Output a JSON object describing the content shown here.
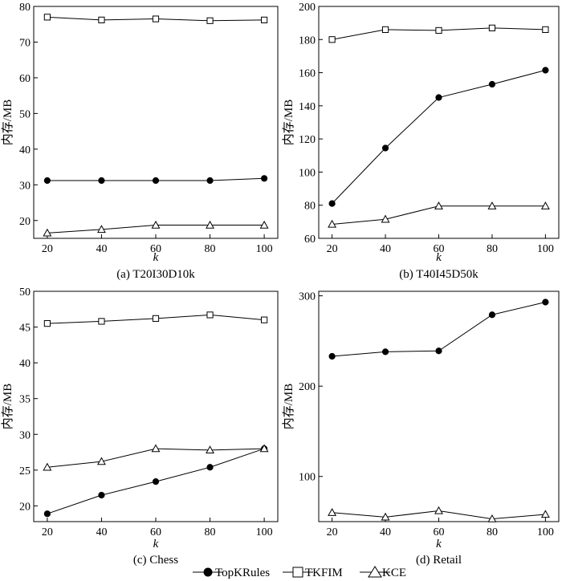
{
  "chart_data": [
    {
      "type": "line",
      "title": "(a) T20I30D10k",
      "xlabel": "k",
      "ylabel": "内存/MB",
      "x": [
        20,
        40,
        60,
        80,
        100
      ],
      "xlim": [
        15,
        105
      ],
      "ylim": [
        15,
        80
      ],
      "xticks": [
        "20",
        "40",
        "60",
        "80",
        "100"
      ],
      "yticks": [
        "20",
        "30",
        "40",
        "50",
        "60",
        "70",
        "80"
      ],
      "series": [
        {
          "name": "TopKRules",
          "marker": "circle",
          "values": [
            31.2,
            31.2,
            31.2,
            31.2,
            31.8
          ]
        },
        {
          "name": "TKFIM",
          "marker": "square",
          "values": [
            77,
            76.2,
            76.5,
            76,
            76.2
          ]
        },
        {
          "name": "KCE",
          "marker": "triangle",
          "values": [
            16.5,
            17.5,
            18.7,
            18.7,
            18.7
          ]
        }
      ]
    },
    {
      "type": "line",
      "title": "(b) T40I45D50k",
      "xlabel": "k",
      "ylabel": "内存/MB",
      "x": [
        20,
        40,
        60,
        80,
        100
      ],
      "xlim": [
        15,
        105
      ],
      "ylim": [
        60,
        200
      ],
      "xticks": [
        "20",
        "40",
        "60",
        "80",
        "100"
      ],
      "yticks": [
        "60",
        "80",
        "100",
        "120",
        "140",
        "160",
        "180",
        "200"
      ],
      "series": [
        {
          "name": "TopKRules",
          "marker": "circle",
          "values": [
            81,
            114.5,
            145,
            153,
            161.5
          ]
        },
        {
          "name": "TKFIM",
          "marker": "square",
          "values": [
            180,
            186,
            185.5,
            187,
            186
          ]
        },
        {
          "name": "KCE",
          "marker": "triangle",
          "values": [
            68.5,
            71.5,
            79.5,
            79.5,
            79.5
          ]
        }
      ]
    },
    {
      "type": "line",
      "title": "(c) Chess",
      "xlabel": "k",
      "ylabel": "内存/MB",
      "x": [
        20,
        40,
        60,
        80,
        100
      ],
      "xlim": [
        15,
        105
      ],
      "ylim": [
        17.8,
        50
      ],
      "xticks": [
        "20",
        "40",
        "60",
        "80",
        "100"
      ],
      "yticks": [
        "20",
        "25",
        "30",
        "35",
        "40",
        "45",
        "50"
      ],
      "series": [
        {
          "name": "TopKRules",
          "marker": "circle",
          "values": [
            18.9,
            21.5,
            23.4,
            25.4,
            28
          ]
        },
        {
          "name": "TKFIM",
          "marker": "square",
          "values": [
            45.5,
            45.8,
            46.2,
            46.7,
            46
          ]
        },
        {
          "name": "KCE",
          "marker": "triangle",
          "values": [
            25.4,
            26.2,
            28,
            27.8,
            28
          ]
        }
      ]
    },
    {
      "type": "line",
      "title": "(d) Retail",
      "xlabel": "k",
      "ylabel": "内存/MB",
      "x": [
        20,
        40,
        60,
        80,
        100
      ],
      "xlim": [
        15,
        105
      ],
      "ylim": [
        50,
        305
      ],
      "xticks": [
        "20",
        "40",
        "60",
        "80",
        "100"
      ],
      "yticks": [
        "100",
        "200",
        "300"
      ],
      "series": [
        {
          "name": "TopKRules",
          "marker": "circle",
          "values": [
            233,
            238,
            239,
            279,
            293
          ]
        },
        {
          "name": "KCE",
          "marker": "triangle",
          "values": [
            60,
            55,
            62,
            53,
            58
          ]
        }
      ]
    }
  ],
  "legend": [
    {
      "name": "TopKRules",
      "marker": "circle"
    },
    {
      "name": "TKFIM",
      "marker": "square"
    },
    {
      "name": "KCE",
      "marker": "triangle"
    }
  ]
}
